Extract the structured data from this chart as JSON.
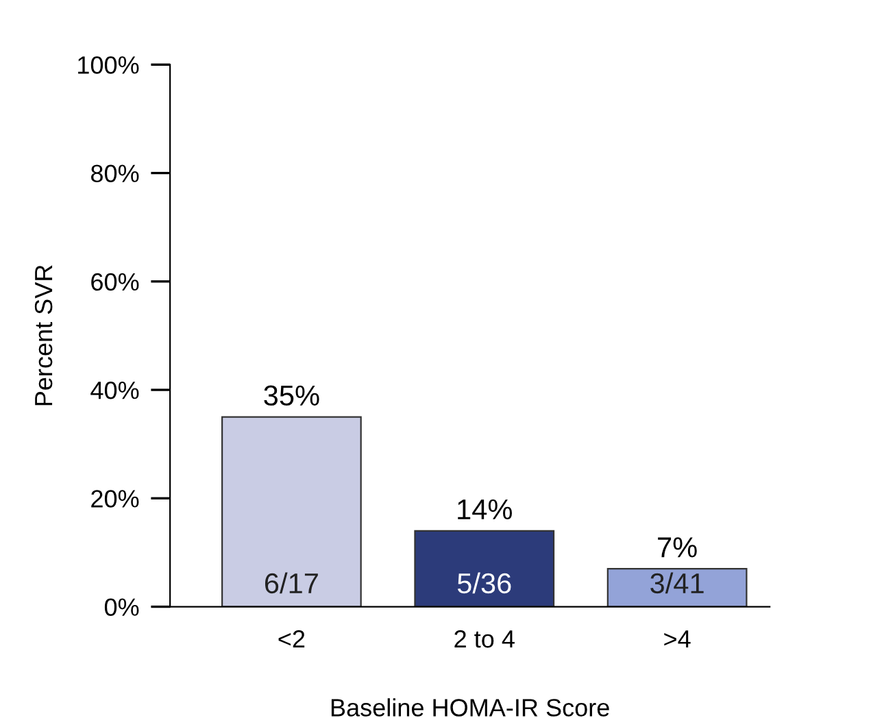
{
  "chart_data": {
    "type": "bar",
    "categories": [
      "<2",
      "2 to 4",
      ">4"
    ],
    "values": [
      35,
      14,
      7
    ],
    "colors": [
      "#c9cce4",
      "#2c3b7a",
      "#93a3d8"
    ],
    "value_labels": [
      "35%",
      "14%",
      "7%"
    ],
    "annotations": [
      {
        "text": "6/17",
        "x": "<2",
        "y": 0
      },
      {
        "text": "5/36",
        "x": "2 to 4",
        "y": 0
      },
      {
        "text": "3/41",
        "x": ">4",
        "y": 0
      }
    ],
    "xlabel": "Baseline HOMA-IR Score",
    "ylabel": "Percent SVR",
    "ylim": [
      0,
      100
    ],
    "yticks": [
      {
        "value": 0,
        "label": "0%"
      },
      {
        "value": 20,
        "label": "20%"
      },
      {
        "value": 40,
        "label": "40%"
      },
      {
        "value": 60,
        "label": "60%"
      },
      {
        "value": 80,
        "label": "80%"
      },
      {
        "value": 100,
        "label": "100%"
      }
    ],
    "grid": false,
    "legend": false
  }
}
